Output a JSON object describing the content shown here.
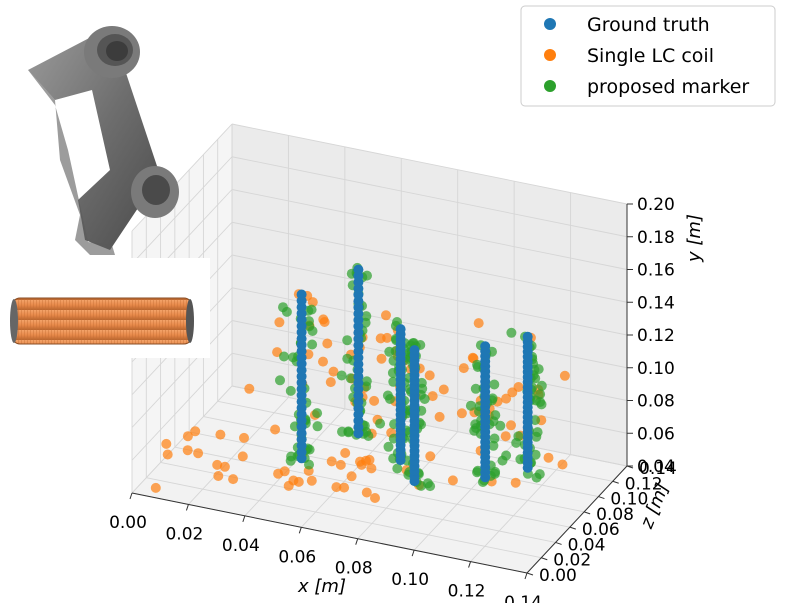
{
  "chart_data": {
    "type": "scatter",
    "projection": "3d",
    "title": "",
    "axes": {
      "x": {
        "label": "x [m]",
        "ticks": [
          "0.00",
          "0.02",
          "0.04",
          "0.06",
          "0.08",
          "0.10",
          "0.12",
          "0.14"
        ],
        "range": [
          0,
          0.14
        ]
      },
      "y": {
        "label": "y [m]",
        "ticks": [
          "0.04",
          "0.06",
          "0.08",
          "0.10",
          "0.12",
          "0.14",
          "0.16",
          "0.18",
          "0.20"
        ],
        "range": [
          0.04,
          0.2
        ]
      },
      "z": {
        "label": "z [m]",
        "ticks": [
          "0.00",
          "0.02",
          "0.04",
          "0.06",
          "0.08",
          "0.10",
          "0.12",
          "0.14"
        ],
        "range": [
          0,
          0.14
        ]
      }
    },
    "grid": true,
    "legend": {
      "placement": "top-right",
      "entries": [
        {
          "label": "Ground truth",
          "color": "#1f77b4"
        },
        {
          "label": "Single LC coil",
          "color": "#ff7f0e"
        },
        {
          "label": "proposed marker",
          "color": "#2ca02c"
        }
      ]
    },
    "series": [
      {
        "name": "Ground truth",
        "color": "#1f77b4",
        "columns": [
          {
            "x": 0.05,
            "z": 0.04,
            "y_from": 0.06,
            "y_to": 0.16
          },
          {
            "x": 0.06,
            "z": 0.08,
            "y_from": 0.06,
            "y_to": 0.16
          },
          {
            "x": 0.08,
            "z": 0.06,
            "y_from": 0.06,
            "y_to": 0.14
          },
          {
            "x": 0.09,
            "z": 0.04,
            "y_from": 0.06,
            "y_to": 0.14
          },
          {
            "x": 0.11,
            "z": 0.06,
            "y_from": 0.06,
            "y_to": 0.14
          },
          {
            "x": 0.12,
            "z": 0.08,
            "y_from": 0.06,
            "y_to": 0.14
          }
        ]
      },
      {
        "name": "Single LC coil",
        "color": "#ff7f0e",
        "note_y_range": [
          0.04,
          0.17
        ],
        "spread": "wide"
      },
      {
        "name": "proposed marker",
        "color": "#2ca02c",
        "note_y_range": [
          0.05,
          0.17
        ],
        "spread": "narrow"
      }
    ]
  },
  "insets": {
    "robot_arm_icon": "robot-arm",
    "coil_icon": "lc-coil"
  }
}
